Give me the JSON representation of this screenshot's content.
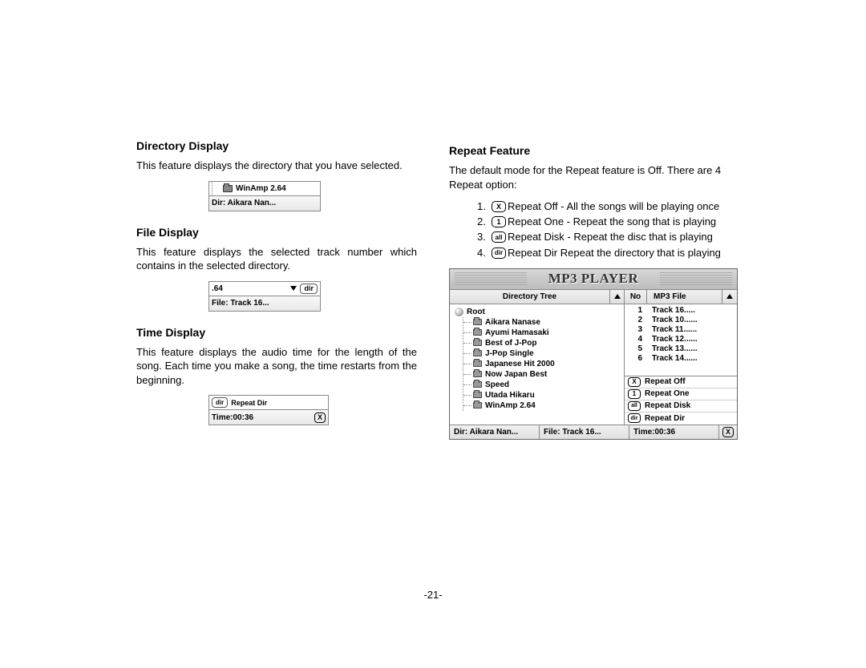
{
  "page_number": "-21-",
  "left_column": {
    "section1": {
      "heading": "Directory  Display",
      "text": "This feature displays the directory that you have selected.",
      "fig": {
        "top_label": "WinAmp 2.64",
        "bottom_label": "Dir: Aikara Nan..."
      }
    },
    "section2": {
      "heading": "File  Display",
      "text": "This feature displays the selected track number which contains in  the selected directory.",
      "fig": {
        "top_label": ".64",
        "bottom_label": "File: Track 16..."
      }
    },
    "section3": {
      "heading": "Time Display",
      "text": "This feature displays the audio time for the length of the song.  Each time you make a song, the time restarts from the beginning.",
      "fig": {
        "top_label": "Repeat Dir",
        "bottom_label": "Time:00:36",
        "x_glyph": "X"
      }
    }
  },
  "right_column": {
    "heading": "Repeat  Feature",
    "intro": "The default mode for the Repeat feature is Off. There are 4 Repeat option:",
    "items": [
      {
        "num": "1.",
        "icon": "X",
        "text": "Repeat Off -  All the songs will be playing once"
      },
      {
        "num": "2.",
        "icon": "1",
        "text": "Repeat One - Repeat the song that is playing"
      },
      {
        "num": "3.",
        "icon": "all",
        "text": "Repeat Disk - Repeat the disc that is playing"
      },
      {
        "num": "4.",
        "icon": "dir",
        "text": "Repeat Dir  Repeat the directory that is playing"
      }
    ]
  },
  "mp3": {
    "title": "MP3 PLAYER",
    "headers": {
      "tree": "Directory Tree",
      "no": "No",
      "file": "MP3 File"
    },
    "root": "Root",
    "dirs": [
      "Aikara Nanase",
      "Ayumi Hamasaki",
      "Best of J-Pop",
      "J-Pop Single",
      "Japanese Hit 2000",
      "Now Japan Best",
      "Speed",
      "Utada Hikaru",
      "WinAmp 2.64"
    ],
    "tracks": [
      {
        "no": "1",
        "name": "Track 16....."
      },
      {
        "no": "2",
        "name": "Track 10......"
      },
      {
        "no": "3",
        "name": "Track 11......"
      },
      {
        "no": "4",
        "name": "Track 12......"
      },
      {
        "no": "5",
        "name": "Track 13......"
      },
      {
        "no": "6",
        "name": "Track 14......"
      }
    ],
    "repeat_options": [
      {
        "icon": "X",
        "label": "Repeat Off"
      },
      {
        "icon": "1",
        "label": "Repeat One"
      },
      {
        "icon": "all",
        "label": "Repeat Disk"
      },
      {
        "icon": "dir",
        "label": "Repeat Dir"
      }
    ],
    "footer": {
      "dir": "Dir: Aikara Nan...",
      "file": "File: Track 16...",
      "time": "Time:00:36",
      "x": "X"
    }
  }
}
